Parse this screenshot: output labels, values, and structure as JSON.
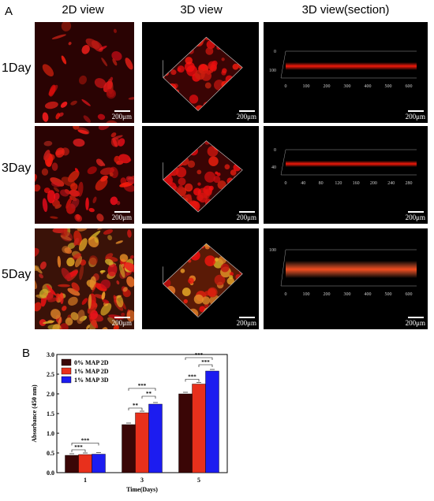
{
  "panel_a": {
    "letter": "A",
    "columns": [
      "2D view",
      "3D view",
      "3D view(section)"
    ],
    "rows": [
      "1Day",
      "3Day",
      "5Day"
    ],
    "scale_bar": "200μm",
    "section_views": [
      {
        "y_ticks": [
          "0",
          "100"
        ],
        "x_ticks": [
          "0",
          "100",
          "200",
          "300",
          "400",
          "500",
          "600"
        ]
      },
      {
        "y_ticks": [
          "0",
          "40"
        ],
        "x_ticks": [
          "0",
          "40",
          "80",
          "120",
          "160",
          "200",
          "240",
          "280"
        ]
      },
      {
        "y_ticks": [
          "100"
        ],
        "x_ticks": [
          "0",
          "100",
          "200",
          "300",
          "400",
          "500",
          "600"
        ]
      }
    ]
  },
  "panel_b": {
    "letter": "B"
  },
  "chart_data": {
    "type": "bar",
    "xlabel": "Time(Days)",
    "ylabel": "Absorbance (450 nm)",
    "ylim": [
      0.0,
      3.0
    ],
    "yticks": [
      0.0,
      0.5,
      1.0,
      1.5,
      2.0,
      2.5,
      3.0
    ],
    "categories": [
      "1",
      "3",
      "5"
    ],
    "series": [
      {
        "name": "0% MAP 2D",
        "color": "#3a0606",
        "values": [
          0.44,
          1.22,
          2.0
        ]
      },
      {
        "name": "1% MAP 2D",
        "color": "#e8301c",
        "values": [
          0.46,
          1.52,
          2.25
        ]
      },
      {
        "name": "1% MAP 3D",
        "color": "#1c1cf0",
        "values": [
          0.47,
          1.74,
          2.58
        ]
      }
    ],
    "significance": "***, **",
    "legend": "top-left"
  }
}
